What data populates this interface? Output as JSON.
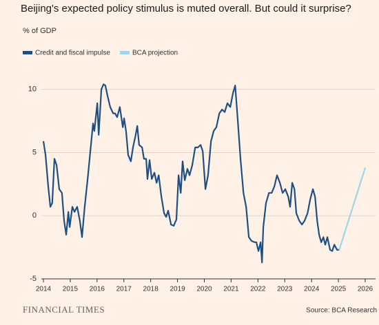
{
  "chart_data": {
    "type": "line",
    "title": "Beijing's expected policy stimulus is muted overall. But could it surprise?",
    "y_label": "% of GDP",
    "source": "Source: BCA Research",
    "publisher": "FINANCIAL TIMES",
    "legend": "top-left",
    "grid": true,
    "xlim": [
      2014,
      2026
    ],
    "xticks": [
      2014,
      2015,
      2016,
      2017,
      2018,
      2019,
      2020,
      2021,
      2022,
      2023,
      2024,
      2025,
      2026
    ],
    "ylim": [
      -5,
      12
    ],
    "yticks": [
      -5,
      0,
      5,
      10
    ],
    "series": [
      {
        "name": "Credit and fiscal impulse",
        "color": "#1d4f84",
        "x": [
          2014.0,
          2014.08,
          2014.18,
          2014.26,
          2014.33,
          2014.41,
          2014.49,
          2014.59,
          2014.69,
          2014.77,
          2014.85,
          2014.93,
          2014.98,
          2015.08,
          2015.16,
          2015.26,
          2015.36,
          2015.44,
          2015.54,
          2015.65,
          2015.75,
          2015.85,
          2015.9,
          2016.01,
          2016.06,
          2016.16,
          2016.24,
          2016.31,
          2016.39,
          2016.49,
          2016.6,
          2016.67,
          2016.75,
          2016.85,
          2016.96,
          2017.01,
          2017.08,
          2017.16,
          2017.26,
          2017.34,
          2017.44,
          2017.5,
          2017.57,
          2017.68,
          2017.75,
          2017.83,
          2017.88,
          2017.96,
          2018.04,
          2018.14,
          2018.22,
          2018.3,
          2018.4,
          2018.5,
          2018.58,
          2018.65,
          2018.76,
          2018.86,
          2018.96,
          2019.04,
          2019.12,
          2019.19,
          2019.27,
          2019.37,
          2019.45,
          2019.55,
          2019.66,
          2019.76,
          2019.86,
          2019.94,
          2020.04,
          2020.14,
          2020.25,
          2020.35,
          2020.45,
          2020.56,
          2020.66,
          2020.76,
          2020.86,
          2020.97,
          2021.07,
          2021.15,
          2021.25,
          2021.35,
          2021.46,
          2021.56,
          2021.66,
          2021.76,
          2021.87,
          2021.94,
          2022.02,
          2022.1,
          2022.15,
          2022.2,
          2022.3,
          2022.41,
          2022.51,
          2022.61,
          2022.71,
          2022.82,
          2022.92,
          2023.02,
          2023.13,
          2023.2,
          2023.28,
          2023.36,
          2023.43,
          2023.54,
          2023.64,
          2023.74,
          2023.85,
          2023.95,
          2024.05,
          2024.13,
          2024.21,
          2024.28,
          2024.36,
          2024.44,
          2024.51,
          2024.59,
          2024.69,
          2024.77,
          2024.85,
          2024.95,
          2025.03
        ],
        "values": [
          5.9,
          4.8,
          2.3,
          0.7,
          1.0,
          4.5,
          4.0,
          2.1,
          1.8,
          -0.4,
          -1.5,
          0.3,
          -0.9,
          0.7,
          0.3,
          0.7,
          -0.4,
          -1.7,
          0.7,
          2.9,
          5.1,
          7.3,
          6.7,
          8.9,
          6.4,
          10.0,
          10.4,
          10.3,
          9.5,
          8.6,
          8.1,
          8.1,
          7.8,
          8.6,
          7.0,
          7.7,
          6.7,
          4.8,
          4.3,
          5.4,
          6.4,
          7.1,
          5.6,
          5.4,
          4.5,
          4.5,
          2.9,
          4.4,
          2.9,
          3.4,
          2.6,
          3.2,
          1.5,
          0.2,
          -0.1,
          0.4,
          -0.7,
          -0.8,
          -0.3,
          3.2,
          1.8,
          4.3,
          2.8,
          3.7,
          3.2,
          4.0,
          5.4,
          5.4,
          5.6,
          5.1,
          2.1,
          3.2,
          5.9,
          6.7,
          7.0,
          8.1,
          8.4,
          8.2,
          8.9,
          8.6,
          9.7,
          10.3,
          7.5,
          4.5,
          1.8,
          0.7,
          -1.7,
          -2.0,
          -2.1,
          -2.1,
          -2.8,
          -2.1,
          -3.7,
          -0.9,
          1.0,
          1.8,
          1.8,
          2.3,
          3.2,
          2.6,
          1.8,
          2.1,
          1.5,
          0.7,
          2.6,
          2.1,
          0.2,
          -0.4,
          -0.7,
          -0.4,
          0.2,
          1.3,
          2.1,
          1.5,
          -0.4,
          -1.5,
          -2.1,
          -1.7,
          -2.3,
          -1.7,
          -2.7,
          -2.8,
          -2.3,
          -2.7,
          -2.7
        ]
      },
      {
        "name": "BCA projection",
        "color": "#9dd5ea",
        "x": [
          2025.03,
          2026.0
        ],
        "values": [
          -2.7,
          3.8
        ]
      }
    ]
  }
}
